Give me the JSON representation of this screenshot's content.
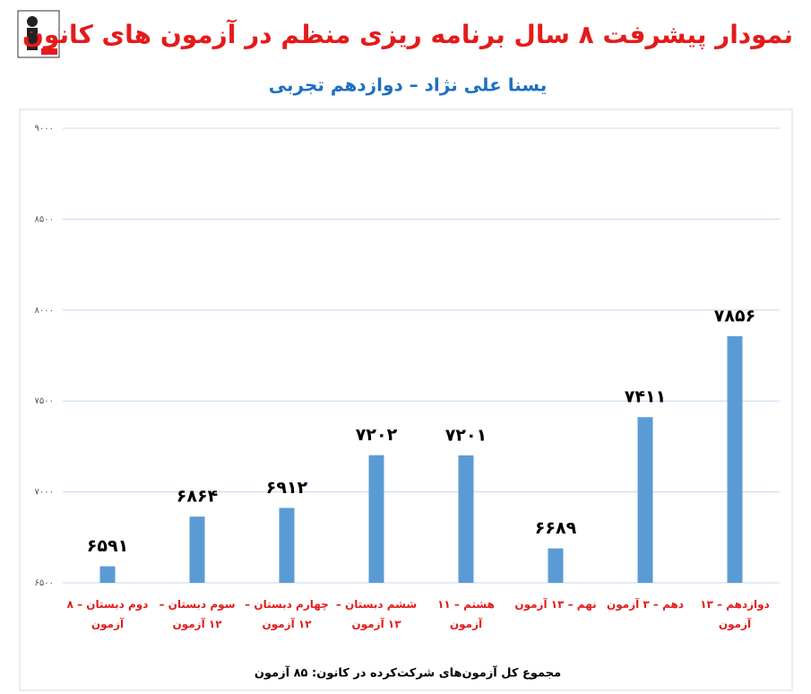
{
  "chart_data": {
    "type": "bar",
    "title": "نمودار پیشرفت ۸ سال برنامه ریزی منظم در آزمون های کانون",
    "subtitle": "یسنا علی نژاد – دوازدهم تجربی",
    "categories": [
      "دوم دبستان – ۸ آزمون",
      "سوم دبستان – ۱۲ آزمون",
      "چهارم دبستان – ۱۲ آزمون",
      "ششم دبستان – ۱۳ آزمون",
      "هشتم – ۱۱ آزمون",
      "نهم – ۱۳ آزمون",
      "دهم – ۳ آزمون",
      "دوازدهم – ۱۳ آزمون"
    ],
    "values": [
      6591,
      6864,
      6912,
      7202,
      7201,
      6689,
      7411,
      7856
    ],
    "value_labels": [
      "۶۵۹۱",
      "۶۸۶۴",
      "۶۹۱۲",
      "۷۲۰۲",
      "۷۲۰۱",
      "۶۶۸۹",
      "۷۴۱۱",
      "۷۸۵۶"
    ],
    "color": "#5b9bd5",
    "ylim": [
      6500,
      9000
    ],
    "yticks": [
      {
        "value": 6500,
        "label": "۶۵۰۰"
      },
      {
        "value": 7000,
        "label": "۷۰۰۰"
      },
      {
        "value": 7500,
        "label": "۷۵۰۰"
      },
      {
        "value": 8000,
        "label": "۸۰۰۰"
      },
      {
        "value": 8500,
        "label": "۸۵۰۰"
      },
      {
        "value": 9000,
        "label": "۹۰۰۰"
      }
    ],
    "grid": true,
    "note": "مجموع کل آزمون‌های شرکت‌کرده در کانون: ۸۵ آزمون"
  }
}
